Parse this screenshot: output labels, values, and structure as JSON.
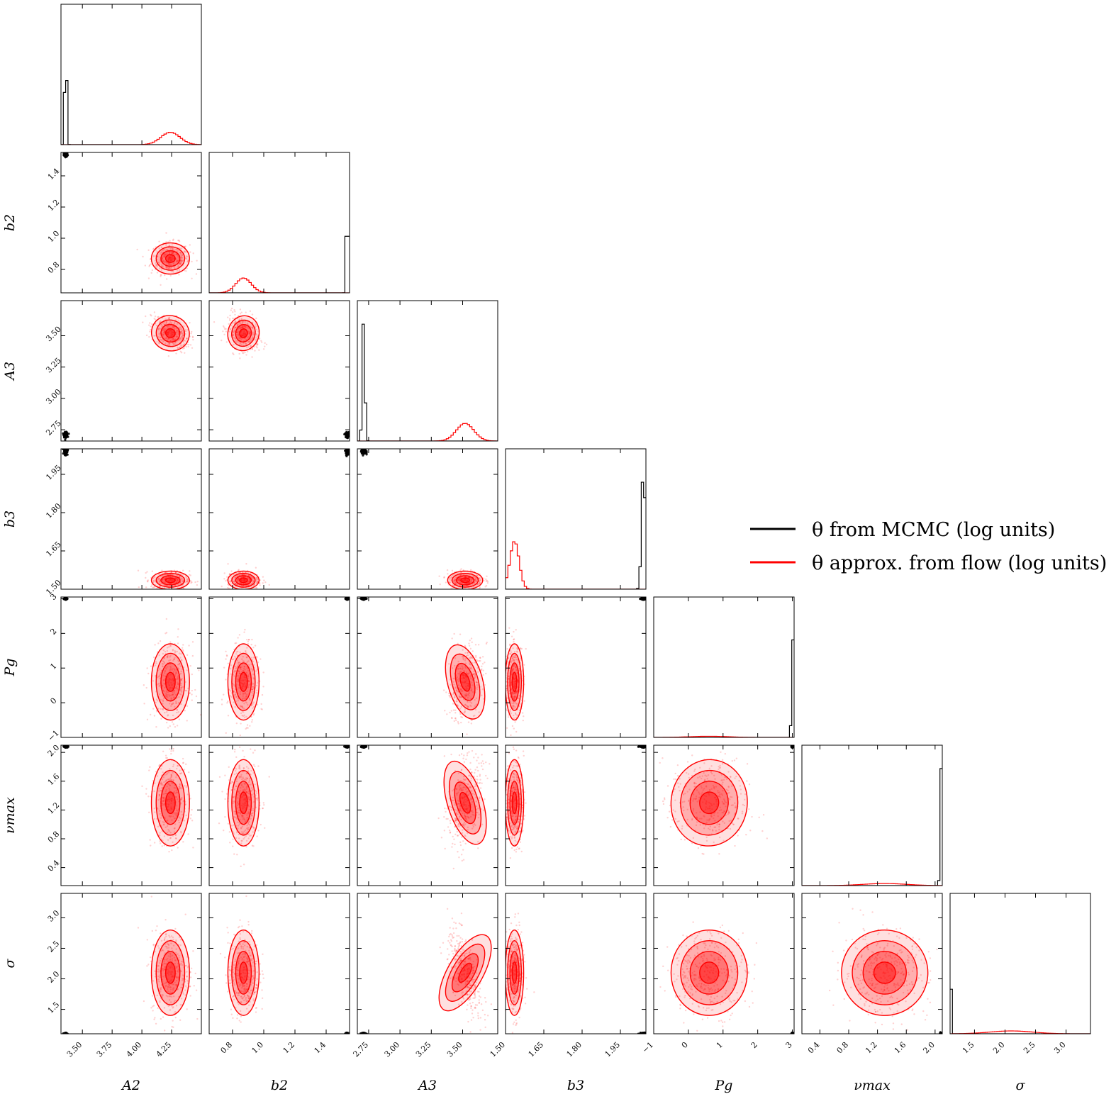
{
  "chart_data": {
    "type": "corner",
    "parameters": [
      {
        "label": "A2",
        "range": [
          3.32,
          4.5
        ],
        "ticks": [
          3.5,
          3.75,
          4.0,
          4.25
        ],
        "tick_labels": [
          "3.50",
          "3.75",
          "4.00",
          "4.25"
        ]
      },
      {
        "label": "b2",
        "range": [
          0.65,
          1.55
        ],
        "ticks": [
          0.8,
          1.0,
          1.2,
          1.4
        ],
        "tick_labels": [
          "0.8",
          "1.0",
          "1.2",
          "1.4"
        ]
      },
      {
        "label": "A3",
        "range": [
          2.66,
          3.78
        ],
        "ticks": [
          2.75,
          3.0,
          3.25,
          3.5
        ],
        "tick_labels": [
          "2.75",
          "3.00",
          "3.25",
          "3.50"
        ]
      },
      {
        "label": "b3",
        "range": [
          1.5,
          2.05
        ],
        "ticks": [
          1.5,
          1.65,
          1.8,
          1.95
        ],
        "tick_labels": [
          "1.50",
          "1.65",
          "1.80",
          "1.95"
        ]
      },
      {
        "label": "Pg",
        "range": [
          -1.0,
          3.05
        ],
        "ticks": [
          -1,
          0,
          1,
          2,
          3
        ],
        "tick_labels": [
          "−1",
          "0",
          "1",
          "2",
          "3"
        ]
      },
      {
        "label": "νmax",
        "range": [
          0.15,
          2.1
        ],
        "ticks": [
          0.4,
          0.8,
          1.2,
          1.6,
          2.0
        ],
        "tick_labels": [
          "0.4",
          "0.8",
          "1.2",
          "1.6",
          "2.0"
        ]
      },
      {
        "label": "σ",
        "range": [
          1.1,
          3.4
        ],
        "ticks": [
          1.5,
          2.0,
          2.5,
          3.0
        ],
        "tick_labels": [
          "1.5",
          "2.0",
          "2.5",
          "3.0"
        ]
      }
    ],
    "series": [
      {
        "name": "θ from MCMC (log units)",
        "color": "#000000",
        "mean": [
          3.36,
          1.535,
          2.71,
          2.04,
          3.0,
          2.08,
          1.1
        ],
        "std": [
          0.008,
          0.006,
          0.01,
          0.007,
          0.005,
          0.005,
          0.008
        ]
      },
      {
        "name": "θ approx. from flow (log units)",
        "color": "#ff0000",
        "mean": [
          4.24,
          0.87,
          3.52,
          1.535,
          0.6,
          1.3,
          2.1
        ],
        "std": [
          0.08,
          0.05,
          0.07,
          0.018,
          0.55,
          0.3,
          0.35
        ]
      }
    ],
    "correlations": {
      "0-2": -0.35,
      "1-2": -0.3,
      "2-4": 0.3,
      "2-5": 0.35,
      "2-6": -0.65,
      "4-5": -0.1,
      "5-6": -0.1
    },
    "legend_position": "right",
    "grid": false
  }
}
